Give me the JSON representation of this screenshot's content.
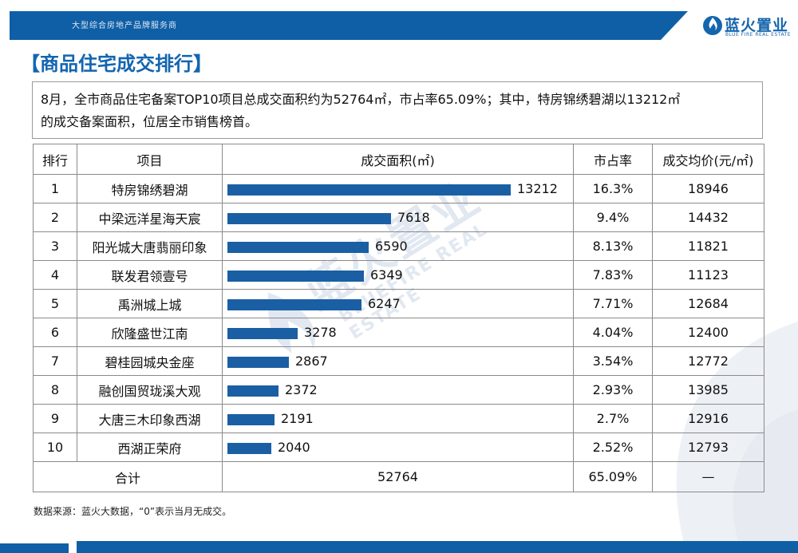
{
  "header": {
    "tagline": "大型综合房地产品牌服务商",
    "logo_cn": "蓝火置业",
    "logo_en": "BLUE FIRE REAL ESTATE"
  },
  "section_title": "【商品住宅成交排行】",
  "summary": {
    "line1": "8月，全市商品住宅备案TOP10项目总成交面积约为52764㎡，市占率65.09%；其中，特房锦绣碧湖以13212㎡",
    "line2": "的成交备案面积，位居全市销售榜首。"
  },
  "watermark": {
    "cn": "蓝火置业",
    "en": "BLUEFIRE REAL ESTATE"
  },
  "chart_data": {
    "type": "table",
    "columns": [
      "排行",
      "项目",
      "成交面积(㎡)",
      "市占率",
      "成交均价(元/㎡)"
    ],
    "rows": [
      {
        "rank": "1",
        "project": "特房锦绣碧湖",
        "area": 13212,
        "share": "16.3%",
        "price": "18946"
      },
      {
        "rank": "2",
        "project": "中梁远洋星海天宸",
        "area": 7618,
        "share": "9.4%",
        "price": "14432"
      },
      {
        "rank": "3",
        "project": "阳光城大唐翡丽印象",
        "area": 6590,
        "share": "8.13%",
        "price": "11821"
      },
      {
        "rank": "4",
        "project": "联发君领壹号",
        "area": 6349,
        "share": "7.83%",
        "price": "11123"
      },
      {
        "rank": "5",
        "project": "禹洲城上城",
        "area": 6247,
        "share": "7.71%",
        "price": "12684"
      },
      {
        "rank": "6",
        "project": "欣隆盛世江南",
        "area": 3278,
        "share": "4.04%",
        "price": "12400"
      },
      {
        "rank": "7",
        "project": "碧桂园城央金座",
        "area": 2867,
        "share": "3.54%",
        "price": "12772"
      },
      {
        "rank": "8",
        "project": "融创国贸珑溪大观",
        "area": 2372,
        "share": "2.93%",
        "price": "13985"
      },
      {
        "rank": "9",
        "project": "大唐三木印象西湖",
        "area": 2191,
        "share": "2.7%",
        "price": "12916"
      },
      {
        "rank": "10",
        "project": "西湖正荣府",
        "area": 2040,
        "share": "2.52%",
        "price": "12793"
      }
    ],
    "total": {
      "label": "合计",
      "area": "52764",
      "share": "65.09%",
      "price": "—"
    },
    "bar_color": "#1a5fa3"
  },
  "footnote": "数据来源：蓝火大数据，“0”表示当月无成交。",
  "colors": {
    "brand": "#0f5fa6",
    "title": "#1365b0"
  }
}
